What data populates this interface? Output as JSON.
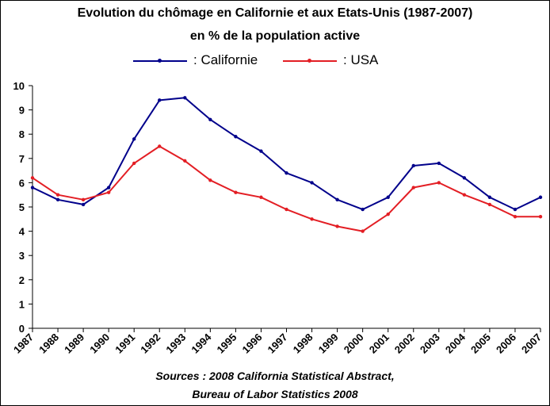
{
  "chart_data": {
    "type": "line",
    "title": "Evolution du chômage en Californie et aux Etats-Unis (1987-2007)",
    "subtitle": "en %  de la population active",
    "x": [
      "1987",
      "1988",
      "1989",
      "1990",
      "1991",
      "1992",
      "1993",
      "1994",
      "1995",
      "1996",
      "1997",
      "1998",
      "1999",
      "2000",
      "2001",
      "2002",
      "2003",
      "2004",
      "2005",
      "2006",
      "2007"
    ],
    "series": [
      {
        "name": ": Californie",
        "color": "#00008b",
        "values": [
          5.8,
          5.3,
          5.1,
          5.8,
          7.8,
          9.4,
          9.5,
          8.6,
          7.9,
          7.3,
          6.4,
          6.0,
          5.3,
          4.9,
          5.4,
          6.7,
          6.8,
          6.2,
          5.4,
          4.9,
          5.4
        ]
      },
      {
        "name": ": USA",
        "color": "#e31e24",
        "values": [
          6.2,
          5.5,
          5.3,
          5.6,
          6.8,
          7.5,
          6.9,
          6.1,
          5.6,
          5.4,
          4.9,
          4.5,
          4.2,
          4.0,
          4.7,
          5.8,
          6.0,
          5.5,
          5.1,
          4.6,
          4.6
        ]
      }
    ],
    "ylim": [
      0,
      10
    ],
    "yticks": [
      "0",
      "1",
      "2",
      "3",
      "4",
      "5",
      "6",
      "7",
      "8",
      "9",
      "10"
    ],
    "grid": false,
    "legend_position": "top-center",
    "sources": [
      "Sources : 2008 California Statistical Abstract,",
      "Bureau of Labor Statistics 2008"
    ]
  }
}
